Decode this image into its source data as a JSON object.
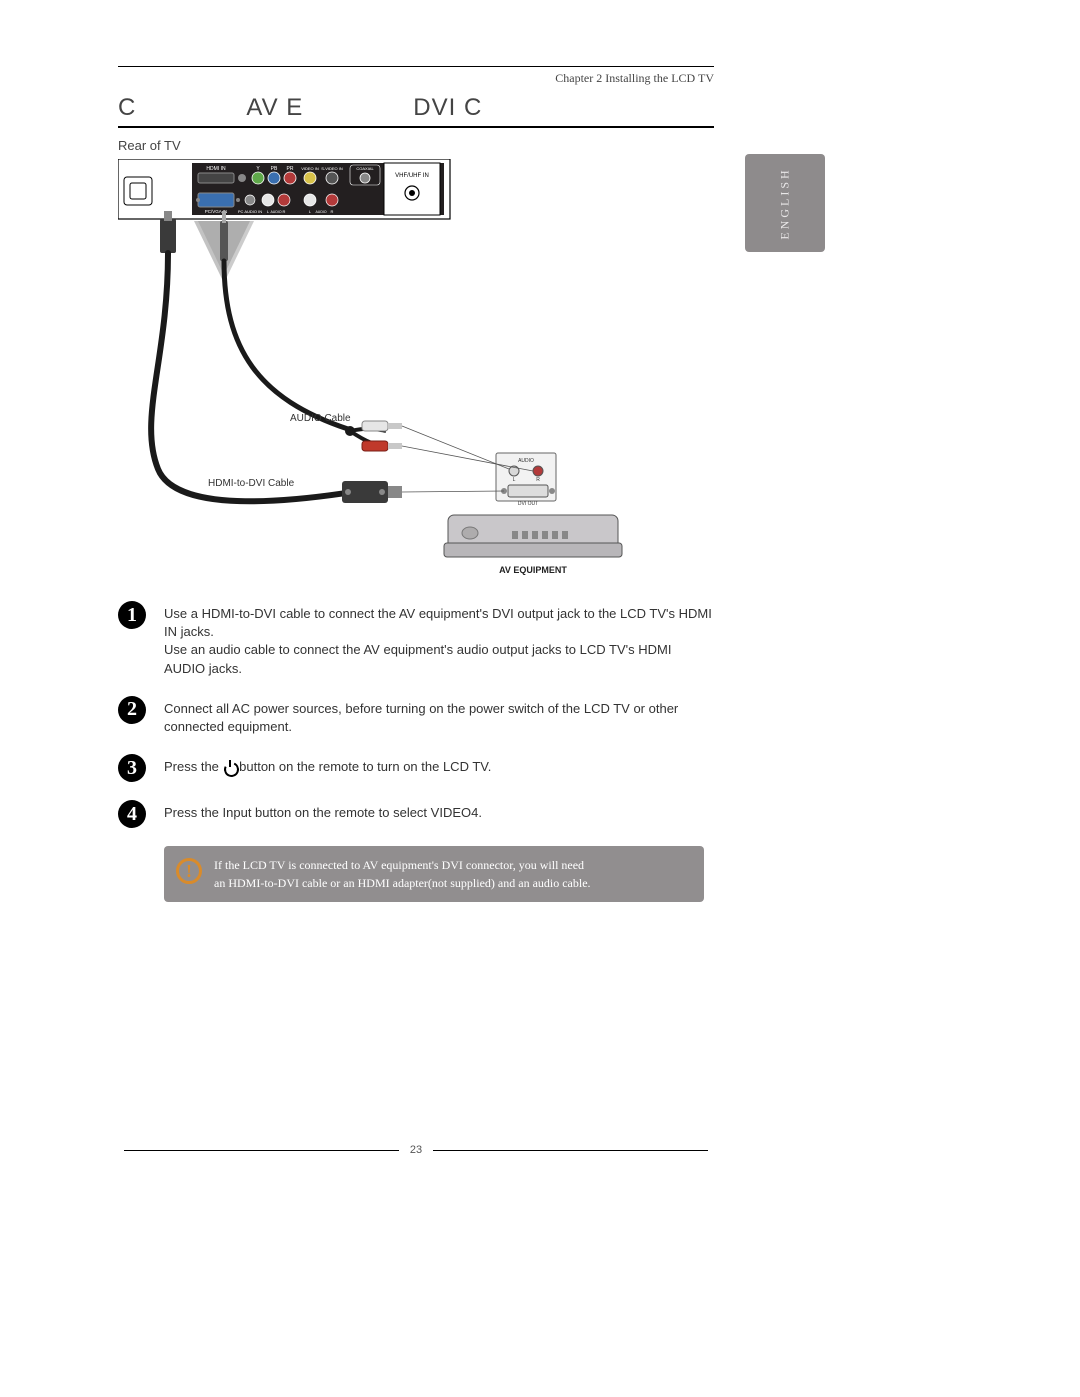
{
  "chapter": "Chapter 2 Installing the LCD TV",
  "title": {
    "a": "C",
    "b": "AV E",
    "c": "DVI C"
  },
  "subhead": "Rear of TV",
  "lang_tab": "ENGLISH",
  "diagram": {
    "panel": {
      "bg": "#231f20",
      "border": "#000",
      "hdmi_label": "HDMI IN",
      "ypbpr": {
        "y": "Y",
        "pb": "PB",
        "pr": "PR",
        "y_col": "#5fa84a",
        "pb_col": "#3a6fb0",
        "pr_col": "#b33a3a"
      },
      "video_in": "VIDEO IN",
      "svideo_in": "S-VIDEO IN",
      "coaxial": "COAXIAL",
      "vhf": "VHF/UHF IN",
      "pcvga": "PC/VGA IN",
      "pcvga_col": "#3a6fb0",
      "pcaudio": "PC AUDIO IN",
      "audio_l": "L",
      "audio_r": "R",
      "audio_label": "AUDIO",
      "l_col": "#e6e6e6",
      "r_col": "#b33a3a"
    },
    "cables": {
      "audio_label": "AUDIO Cable",
      "hdmi_dvi_label": "HDMI-to-DVI Cable",
      "rca_white": "#e6e6e6",
      "rca_red": "#c0392b",
      "cable_col": "#1a1a1a"
    },
    "device": {
      "label": "AV EQUIPMENT",
      "body_fill": "#c9c7ca",
      "panel_fill": "#f2f2f2",
      "audio_label": "AUDIO",
      "l": "L",
      "r": "R",
      "l_col": "#d8d8d8",
      "r_col": "#b33a3a",
      "dvi_label": "DVI OUT"
    }
  },
  "steps": [
    {
      "n": "1",
      "text": "Use a HDMI-to-DVI cable to connect the AV equipment's DVI output jack to the LCD TV's HDMI IN jacks.\nUse an audio cable to connect the AV equipment's audio output jacks to LCD TV's HDMI AUDIO jacks."
    },
    {
      "n": "2",
      "text": "Connect all AC power sources, before turning on the power switch of the LCD TV or other connected equipment."
    },
    {
      "n": "3",
      "text_pre": "Press the ",
      "text_post": " button on the remote to turn on the LCD TV."
    },
    {
      "n": "4",
      "text": "Press the Input button on the remote to select VIDEO4."
    }
  ],
  "note": "If the LCD TV is connected to AV equipment's DVI connector,  you will need\nan HDMI-to-DVI cable or  an HDMI adapter(not supplied) and an audio cable.",
  "page_num": "23",
  "colors": {
    "note_bg": "#918e8f",
    "note_icon": "#d98b2b",
    "tab_bg": "#8e8b8c"
  }
}
